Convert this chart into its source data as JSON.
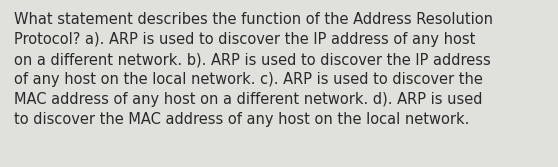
{
  "text": "What statement describes the function of the Address Resolution\nProtocol? a). ARP is used to discover the IP address of any host\non a different network. b). ARP is used to discover the IP address\nof any host on the local network. c). ARP is used to discover the\nMAC address of any host on a different network. d). ARP is used\nto discover the MAC address of any host on the local network.",
  "background_color": "#e0e0dc",
  "text_color": "#2a2a2a",
  "font_size": 10.5,
  "font_family": "DejaVu Sans"
}
